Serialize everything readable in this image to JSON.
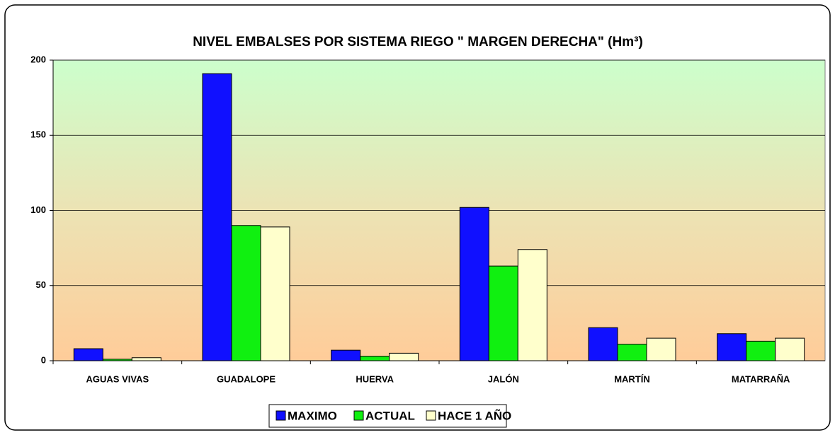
{
  "chart_data": {
    "type": "bar",
    "title": "NIVEL EMBALSES POR SISTEMA  RIEGO \" MARGEN DERECHA\" (Hm³)",
    "categories": [
      "AGUAS VIVAS",
      "GUADALOPE",
      "HUERVA",
      "JALÓN",
      "MARTÍN",
      "MATARRAÑA"
    ],
    "series": [
      {
        "name": "MAXIMO",
        "color": "#1010ff",
        "values": [
          8,
          191,
          7,
          102,
          22,
          18
        ]
      },
      {
        "name": "ACTUAL",
        "color": "#10f010",
        "values": [
          1,
          90,
          3,
          63,
          11,
          13
        ]
      },
      {
        "name": "HACE 1 AÑO",
        "color": "#ffffcc",
        "values": [
          2,
          89,
          5,
          74,
          15,
          15
        ]
      }
    ],
    "ylim": [
      0,
      200
    ],
    "yticks": [
      0,
      50,
      100,
      150,
      200
    ],
    "grid": true,
    "legend": "bottom"
  }
}
